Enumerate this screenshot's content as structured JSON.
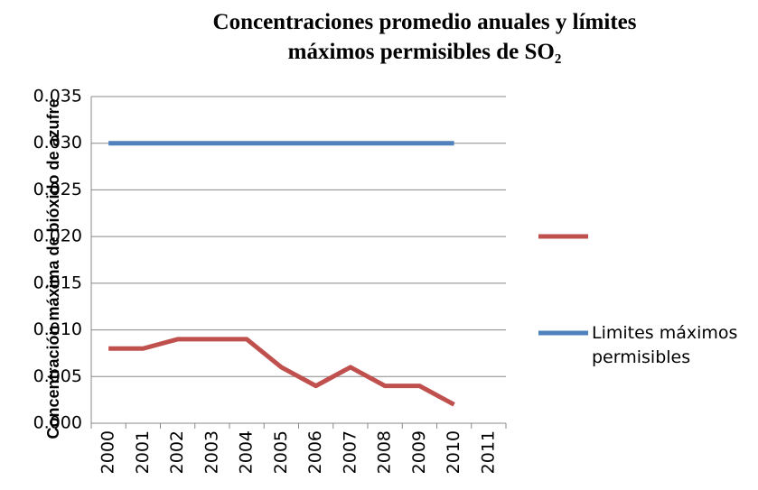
{
  "chart_data": {
    "type": "line",
    "title": "Concentraciones promedio anuales y límites máximos permisibles de SO₂",
    "y_label": "Concentración máxima de bióxido de azufre",
    "categories": [
      "2000",
      "2001",
      "2002",
      "2003",
      "2004",
      "2005",
      "2006",
      "2007",
      "2008",
      "2009",
      "2010",
      "2011"
    ],
    "series": [
      {
        "color": "#c0504d",
        "values": [
          0.008,
          0.008,
          0.009,
          0.009,
          0.009,
          0.006,
          0.004,
          0.006,
          0.004,
          0.004,
          0.002,
          null
        ]
      },
      {
        "name": "Limites máximos permisibles",
        "color": "#4f81bd",
        "values": [
          0.03,
          0.03,
          0.03,
          0.03,
          0.03,
          0.03,
          0.03,
          0.03,
          0.03,
          0.03,
          0.03,
          null
        ]
      }
    ],
    "ylim": [
      0,
      0.035
    ],
    "yticks": [
      {
        "value": 0,
        "label": "0.000"
      },
      {
        "value": 0.005,
        "label": "0.005"
      },
      {
        "value": 0.01,
        "label": "0.010"
      },
      {
        "value": 0.015,
        "label": "0.015"
      },
      {
        "value": 0.02,
        "label": "0.020"
      },
      {
        "value": 0.025,
        "label": "0.025"
      },
      {
        "value": 0.03,
        "label": "0.030"
      },
      {
        "value": 0.035,
        "label": "0.035"
      }
    ],
    "grid": true
  }
}
